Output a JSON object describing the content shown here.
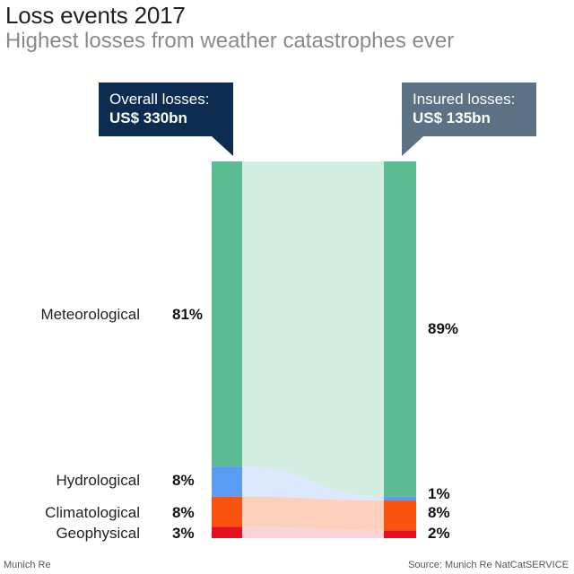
{
  "chart_data": {
    "type": "bar",
    "title": "Loss events 2017",
    "subtitle": "Highest losses from weather catastrophes ever",
    "categories": [
      "Meteorological",
      "Hydrological",
      "Climatological",
      "Geophysical"
    ],
    "series": [
      {
        "name": "Overall losses",
        "total_label": "US$ 330bn",
        "values": [
          81,
          8,
          8,
          3
        ],
        "labels": [
          "81%",
          "8%",
          "8%",
          "3%"
        ]
      },
      {
        "name": "Insured losses",
        "total_label": "US$ 135bn",
        "values": [
          89,
          1,
          8,
          2
        ],
        "labels": [
          "89%",
          "1%",
          "8%",
          "2%"
        ]
      }
    ],
    "colors": {
      "Meteorological": "#5cbb93",
      "Hydrological": "#5b9bf4",
      "Climatological": "#fa5211",
      "Geophysical": "#e3101f"
    },
    "flow_colors": {
      "Meteorological": "#d3ede2",
      "Hydrological": "#dce8fb",
      "Climatological": "#fdd0bd",
      "Geophysical": "#fbd4d8"
    },
    "callouts": {
      "overall_label": "Overall losses:",
      "overall_value": "US$ 330bn",
      "insured_label": "Insured losses:",
      "insured_value": "US$ 135bn"
    }
  },
  "footer": {
    "left": "Munich Re",
    "right": "Source: Munich Re NatCatSERVICE"
  }
}
